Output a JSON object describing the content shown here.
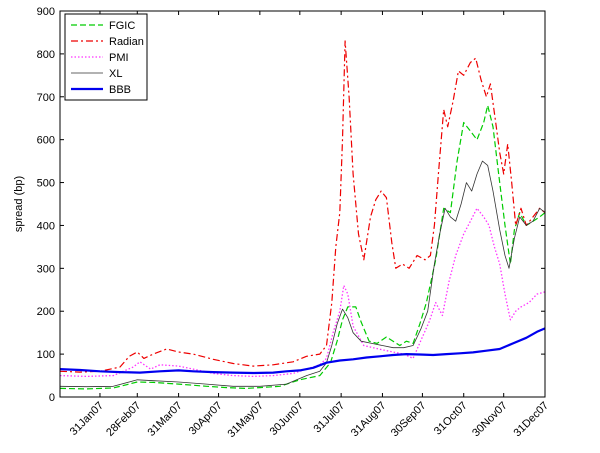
{
  "chart_data": {
    "type": "line",
    "xlabel": "",
    "ylabel": "spread (bp)",
    "ylim": [
      0,
      900
    ],
    "yticks": [
      0,
      100,
      200,
      300,
      400,
      500,
      600,
      700,
      800,
      900
    ],
    "xlim": [
      0,
      364
    ],
    "xticks": [
      {
        "x": 30,
        "label": "31Jan07"
      },
      {
        "x": 58,
        "label": "28Feb07"
      },
      {
        "x": 89,
        "label": "31Mar07"
      },
      {
        "x": 119,
        "label": "30Apr07"
      },
      {
        "x": 150,
        "label": "31May07"
      },
      {
        "x": 180,
        "label": "30Jun07"
      },
      {
        "x": 211,
        "label": "31Jul07"
      },
      {
        "x": 242,
        "label": "31Aug07"
      },
      {
        "x": 272,
        "label": "30Sep07"
      },
      {
        "x": 303,
        "label": "31Oct07"
      },
      {
        "x": 333,
        "label": "30Nov07"
      },
      {
        "x": 364,
        "label": "31Dec07"
      }
    ],
    "grid": false,
    "legend_position": "top-left",
    "series": [
      {
        "name": "FGIC",
        "color": "#00cc00",
        "style": "dashed",
        "width": 1.2,
        "points": [
          [
            0,
            20
          ],
          [
            20,
            19
          ],
          [
            40,
            21
          ],
          [
            58,
            35
          ],
          [
            70,
            34
          ],
          [
            80,
            32
          ],
          [
            89,
            30
          ],
          [
            110,
            25
          ],
          [
            125,
            22
          ],
          [
            140,
            20
          ],
          [
            150,
            22
          ],
          [
            165,
            25
          ],
          [
            180,
            40
          ],
          [
            195,
            50
          ],
          [
            203,
            80
          ],
          [
            208,
            130
          ],
          [
            212,
            180
          ],
          [
            216,
            210
          ],
          [
            222,
            210
          ],
          [
            226,
            175
          ],
          [
            232,
            130
          ],
          [
            238,
            125
          ],
          [
            245,
            140
          ],
          [
            250,
            130
          ],
          [
            255,
            120
          ],
          [
            260,
            130
          ],
          [
            265,
            125
          ],
          [
            270,
            170
          ],
          [
            275,
            220
          ],
          [
            282,
            320
          ],
          [
            288,
            440
          ],
          [
            293,
            430
          ],
          [
            298,
            550
          ],
          [
            303,
            640
          ],
          [
            308,
            620
          ],
          [
            313,
            600
          ],
          [
            318,
            640
          ],
          [
            321,
            680
          ],
          [
            325,
            630
          ],
          [
            330,
            500
          ],
          [
            334,
            400
          ],
          [
            338,
            310
          ],
          [
            341,
            390
          ],
          [
            345,
            430
          ],
          [
            350,
            400
          ],
          [
            355,
            410
          ],
          [
            360,
            420
          ],
          [
            364,
            430
          ]
        ]
      },
      {
        "name": "Radian",
        "color": "#ee0000",
        "style": "dashdot",
        "width": 1.2,
        "points": [
          [
            0,
            60
          ],
          [
            15,
            58
          ],
          [
            30,
            60
          ],
          [
            45,
            70
          ],
          [
            52,
            95
          ],
          [
            58,
            105
          ],
          [
            63,
            90
          ],
          [
            70,
            100
          ],
          [
            80,
            112
          ],
          [
            89,
            105
          ],
          [
            100,
            100
          ],
          [
            115,
            88
          ],
          [
            130,
            78
          ],
          [
            145,
            72
          ],
          [
            160,
            75
          ],
          [
            175,
            82
          ],
          [
            185,
            95
          ],
          [
            195,
            100
          ],
          [
            200,
            120
          ],
          [
            204,
            220
          ],
          [
            207,
            350
          ],
          [
            210,
            430
          ],
          [
            212,
            600
          ],
          [
            214,
            830
          ],
          [
            217,
            700
          ],
          [
            220,
            520
          ],
          [
            224,
            380
          ],
          [
            228,
            320
          ],
          [
            233,
            420
          ],
          [
            237,
            460
          ],
          [
            241,
            480
          ],
          [
            245,
            465
          ],
          [
            249,
            360
          ],
          [
            252,
            300
          ],
          [
            257,
            310
          ],
          [
            262,
            300
          ],
          [
            268,
            330
          ],
          [
            274,
            320
          ],
          [
            278,
            330
          ],
          [
            281,
            400
          ],
          [
            284,
            520
          ],
          [
            288,
            670
          ],
          [
            291,
            630
          ],
          [
            295,
            690
          ],
          [
            299,
            760
          ],
          [
            303,
            750
          ],
          [
            308,
            780
          ],
          [
            312,
            790
          ],
          [
            316,
            740
          ],
          [
            320,
            700
          ],
          [
            323,
            730
          ],
          [
            327,
            640
          ],
          [
            330,
            570
          ],
          [
            333,
            520
          ],
          [
            336,
            590
          ],
          [
            339,
            500
          ],
          [
            342,
            400
          ],
          [
            346,
            440
          ],
          [
            350,
            400
          ],
          [
            355,
            420
          ],
          [
            360,
            440
          ],
          [
            364,
            430
          ]
        ]
      },
      {
        "name": "PMI",
        "color": "#ff33ff",
        "style": "dotted",
        "width": 1.3,
        "points": [
          [
            0,
            50
          ],
          [
            20,
            48
          ],
          [
            40,
            50
          ],
          [
            55,
            70
          ],
          [
            60,
            82
          ],
          [
            68,
            65
          ],
          [
            75,
            75
          ],
          [
            89,
            72
          ],
          [
            100,
            65
          ],
          [
            115,
            55
          ],
          [
            130,
            50
          ],
          [
            145,
            48
          ],
          [
            160,
            50
          ],
          [
            175,
            55
          ],
          [
            185,
            65
          ],
          [
            195,
            75
          ],
          [
            200,
            90
          ],
          [
            205,
            150
          ],
          [
            210,
            200
          ],
          [
            213,
            260
          ],
          [
            216,
            240
          ],
          [
            220,
            165
          ],
          [
            228,
            120
          ],
          [
            235,
            115
          ],
          [
            242,
            110
          ],
          [
            250,
            105
          ],
          [
            258,
            100
          ],
          [
            265,
            90
          ],
          [
            272,
            140
          ],
          [
            277,
            175
          ],
          [
            282,
            220
          ],
          [
            287,
            190
          ],
          [
            292,
            270
          ],
          [
            297,
            330
          ],
          [
            303,
            380
          ],
          [
            308,
            410
          ],
          [
            313,
            440
          ],
          [
            318,
            420
          ],
          [
            322,
            400
          ],
          [
            326,
            350
          ],
          [
            330,
            310
          ],
          [
            334,
            240
          ],
          [
            338,
            180
          ],
          [
            342,
            200
          ],
          [
            346,
            210
          ],
          [
            352,
            220
          ],
          [
            358,
            240
          ],
          [
            364,
            245
          ]
        ]
      },
      {
        "name": "XL",
        "color": "#333333",
        "style": "solid",
        "width": 0.8,
        "points": [
          [
            0,
            25
          ],
          [
            20,
            24
          ],
          [
            40,
            25
          ],
          [
            58,
            40
          ],
          [
            70,
            38
          ],
          [
            89,
            35
          ],
          [
            110,
            30
          ],
          [
            130,
            25
          ],
          [
            150,
            25
          ],
          [
            170,
            30
          ],
          [
            185,
            50
          ],
          [
            195,
            60
          ],
          [
            200,
            80
          ],
          [
            204,
            120
          ],
          [
            208,
            170
          ],
          [
            212,
            205
          ],
          [
            216,
            185
          ],
          [
            220,
            150
          ],
          [
            226,
            130
          ],
          [
            234,
            125
          ],
          [
            242,
            120
          ],
          [
            250,
            115
          ],
          [
            258,
            115
          ],
          [
            265,
            120
          ],
          [
            271,
            160
          ],
          [
            276,
            200
          ],
          [
            281,
            310
          ],
          [
            285,
            380
          ],
          [
            289,
            440
          ],
          [
            293,
            420
          ],
          [
            297,
            410
          ],
          [
            301,
            450
          ],
          [
            305,
            500
          ],
          [
            309,
            480
          ],
          [
            313,
            520
          ],
          [
            317,
            550
          ],
          [
            321,
            540
          ],
          [
            325,
            480
          ],
          [
            330,
            390
          ],
          [
            334,
            330
          ],
          [
            337,
            300
          ],
          [
            341,
            370
          ],
          [
            345,
            420
          ],
          [
            350,
            400
          ],
          [
            355,
            410
          ],
          [
            360,
            440
          ],
          [
            364,
            430
          ]
        ]
      },
      {
        "name": "BBB",
        "color": "#0000ee",
        "style": "solid",
        "width": 2.2,
        "points": [
          [
            0,
            65
          ],
          [
            15,
            63
          ],
          [
            30,
            60
          ],
          [
            45,
            58
          ],
          [
            60,
            57
          ],
          [
            75,
            60
          ],
          [
            89,
            62
          ],
          [
            100,
            60
          ],
          [
            115,
            58
          ],
          [
            130,
            57
          ],
          [
            145,
            56
          ],
          [
            160,
            57
          ],
          [
            170,
            60
          ],
          [
            180,
            62
          ],
          [
            190,
            68
          ],
          [
            200,
            80
          ],
          [
            210,
            85
          ],
          [
            220,
            88
          ],
          [
            230,
            92
          ],
          [
            240,
            95
          ],
          [
            250,
            98
          ],
          [
            260,
            100
          ],
          [
            270,
            99
          ],
          [
            280,
            98
          ],
          [
            290,
            100
          ],
          [
            300,
            102
          ],
          [
            310,
            104
          ],
          [
            320,
            108
          ],
          [
            330,
            112
          ],
          [
            340,
            125
          ],
          [
            350,
            138
          ],
          [
            358,
            152
          ],
          [
            364,
            160
          ]
        ]
      }
    ]
  }
}
